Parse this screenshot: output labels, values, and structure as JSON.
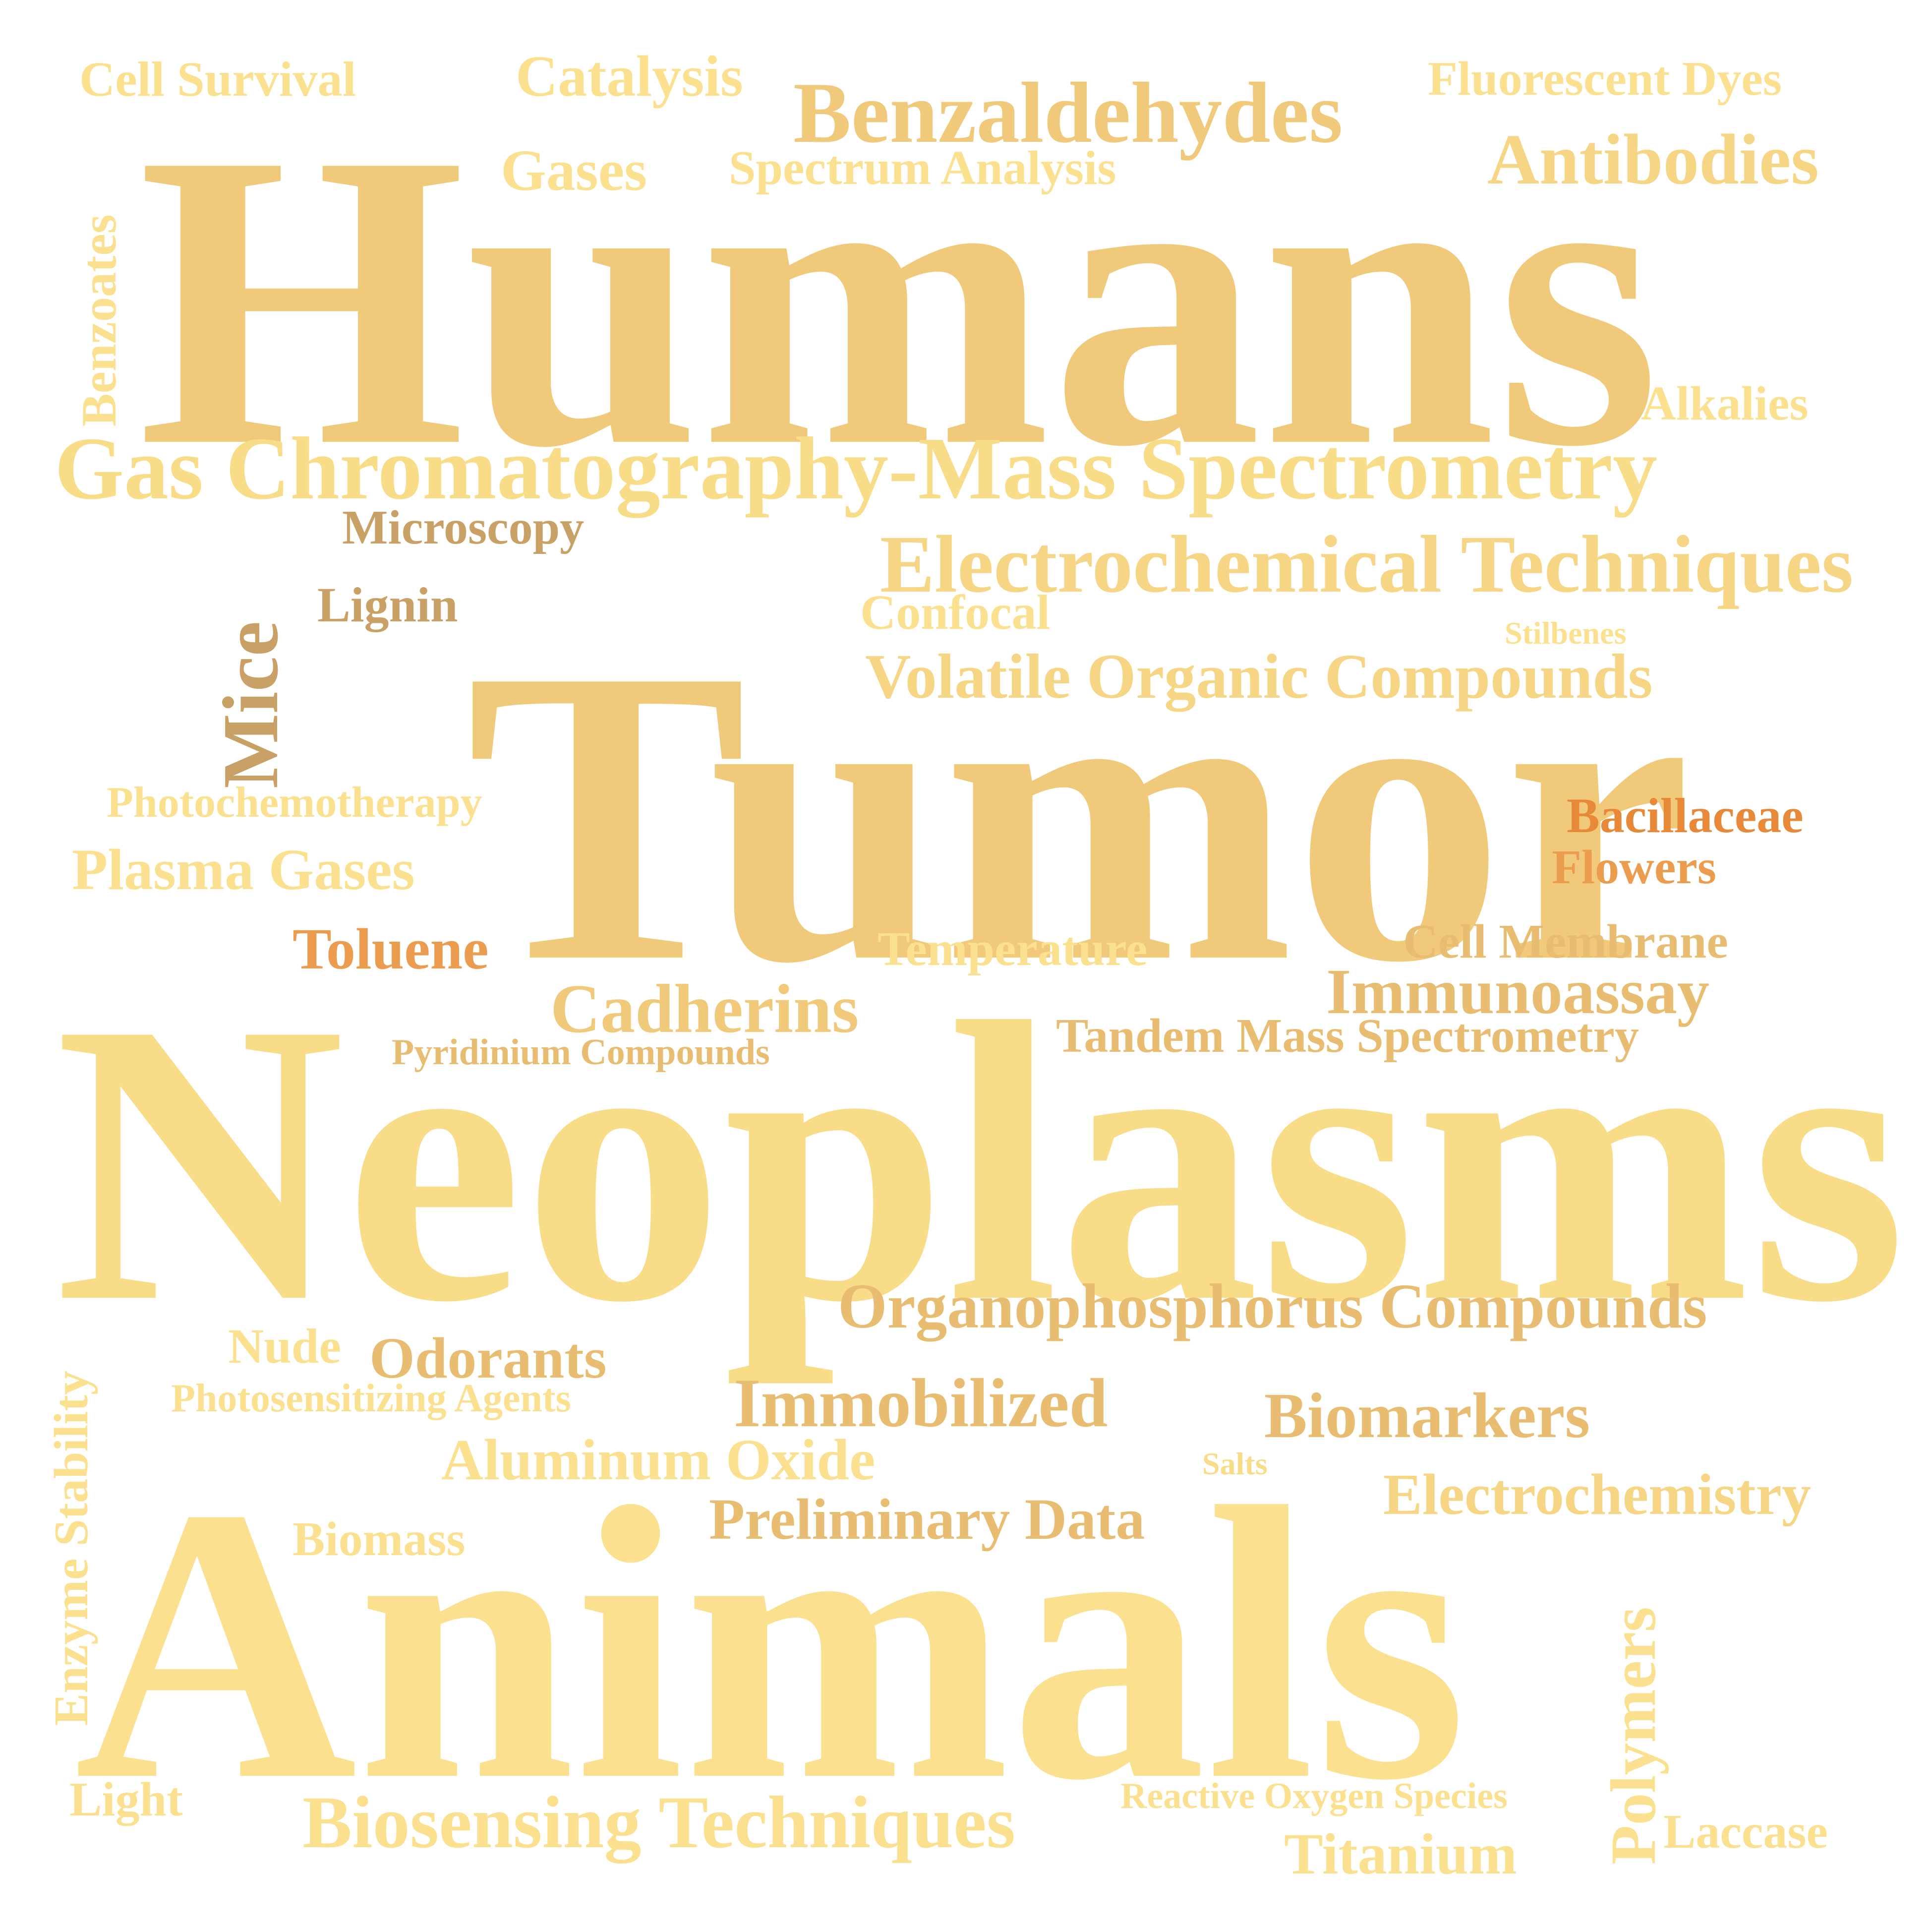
{
  "palette": {
    "pale_yellow": "#fbe08f",
    "light_yellow": "#f9dc88",
    "sand": "#f6d584",
    "gold": "#f0c97a",
    "tan": "#e8bd72",
    "brown_tan": "#c9a065",
    "orange": "#ec9c4e",
    "dark_orange": "#e8893a"
  },
  "words": [
    {
      "text": "Humans"
    },
    {
      "text": "Tumor"
    },
    {
      "text": "Neoplasms"
    },
    {
      "text": "Animals"
    },
    {
      "text": "Gas Chromatography-Mass Spectrometry"
    },
    {
      "text": "Electrochemical Techniques"
    },
    {
      "text": "Volatile Organic Compounds"
    },
    {
      "text": "Organophosphorus Compounds"
    },
    {
      "text": "Benzaldehydes"
    },
    {
      "text": "Antibodies"
    },
    {
      "text": "Cell Survival"
    },
    {
      "text": "Catalysis"
    },
    {
      "text": "Fluorescent Dyes"
    },
    {
      "text": "Gases"
    },
    {
      "text": "Spectrum Analysis"
    },
    {
      "text": "Benzoates"
    },
    {
      "text": "Alkalies"
    },
    {
      "text": "Microscopy"
    },
    {
      "text": "Lignin"
    },
    {
      "text": "Mice"
    },
    {
      "text": "Confocal"
    },
    {
      "text": "Stilbenes"
    },
    {
      "text": "Photochemotherapy"
    },
    {
      "text": "Plasma Gases"
    },
    {
      "text": "Bacillaceae"
    },
    {
      "text": "Flowers"
    },
    {
      "text": "Toluene"
    },
    {
      "text": "Temperature"
    },
    {
      "text": "Cell Membrane"
    },
    {
      "text": "Immunoassay"
    },
    {
      "text": "Cadherins"
    },
    {
      "text": "Pyridinium Compounds"
    },
    {
      "text": "Tandem Mass Spectrometry"
    },
    {
      "text": "Enzyme Stability"
    },
    {
      "text": "Nude"
    },
    {
      "text": "Odorants"
    },
    {
      "text": "Photosensitizing Agents"
    },
    {
      "text": "Immobilized"
    },
    {
      "text": "Biomarkers"
    },
    {
      "text": "Aluminum Oxide"
    },
    {
      "text": "Salts"
    },
    {
      "text": "Electrochemistry"
    },
    {
      "text": "Biomass"
    },
    {
      "text": "Preliminary Data"
    },
    {
      "text": "Polymers"
    },
    {
      "text": "Light"
    },
    {
      "text": "Biosensing Techniques"
    },
    {
      "text": "Reactive Oxygen Species"
    },
    {
      "text": "Titanium"
    },
    {
      "text": "Laccase"
    }
  ]
}
